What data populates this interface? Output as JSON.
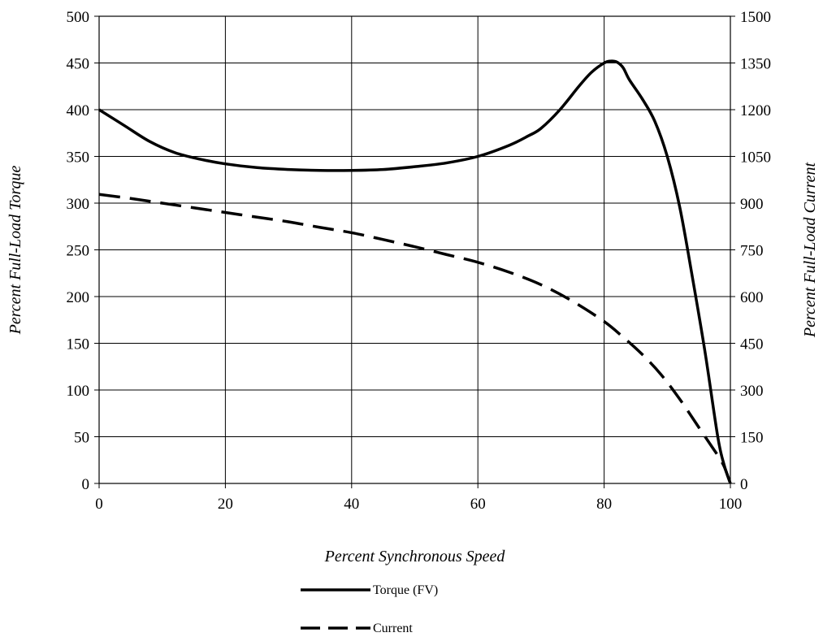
{
  "chart_data": {
    "type": "line",
    "xlabel": "Percent Synchronous Speed",
    "ylabel": "Percent Full-Load Torque",
    "y2label": "Percent Full-Load Current",
    "xlim": [
      0,
      100
    ],
    "ylim": [
      0,
      500
    ],
    "y2lim": [
      0,
      1500
    ],
    "x_ticks": [
      0,
      20,
      40,
      60,
      80,
      100
    ],
    "y_ticks": [
      0,
      50,
      100,
      150,
      200,
      250,
      300,
      350,
      400,
      450,
      500
    ],
    "y2_ticks": [
      0,
      150,
      300,
      450,
      600,
      750,
      900,
      1050,
      1200,
      1350,
      1500
    ],
    "grid": true,
    "legend_position": "bottom-center",
    "series": [
      {
        "name": "Torque (FV)",
        "axis": "left",
        "style": "solid",
        "color": "#000000",
        "x": [
          0,
          4,
          8,
          12,
          16,
          20,
          25,
          30,
          35,
          40,
          45,
          50,
          55,
          60,
          65,
          68,
          70,
          73,
          76,
          78,
          80,
          81,
          82,
          83,
          84,
          86,
          88,
          90,
          92,
          94,
          96,
          98,
          99,
          100
        ],
        "y": [
          400,
          383,
          366,
          354,
          347,
          342,
          338,
          336,
          335,
          335,
          336,
          339,
          343,
          350,
          362,
          372,
          380,
          400,
          425,
          440,
          450,
          452,
          451,
          445,
          432,
          412,
          388,
          350,
          295,
          220,
          140,
          50,
          20,
          0
        ]
      },
      {
        "name": "Current",
        "axis": "right",
        "style": "dashed",
        "color": "#000000",
        "x": [
          0,
          5,
          10,
          15,
          20,
          25,
          30,
          35,
          40,
          45,
          50,
          55,
          60,
          65,
          70,
          75,
          80,
          83,
          86,
          89,
          92,
          95,
          97,
          98,
          99,
          100
        ],
        "y": [
          928,
          915,
          900,
          885,
          870,
          855,
          840,
          822,
          805,
          783,
          760,
          735,
          710,
          678,
          638,
          585,
          520,
          470,
          415,
          350,
          270,
          180,
          120,
          90,
          55,
          0
        ]
      }
    ]
  }
}
